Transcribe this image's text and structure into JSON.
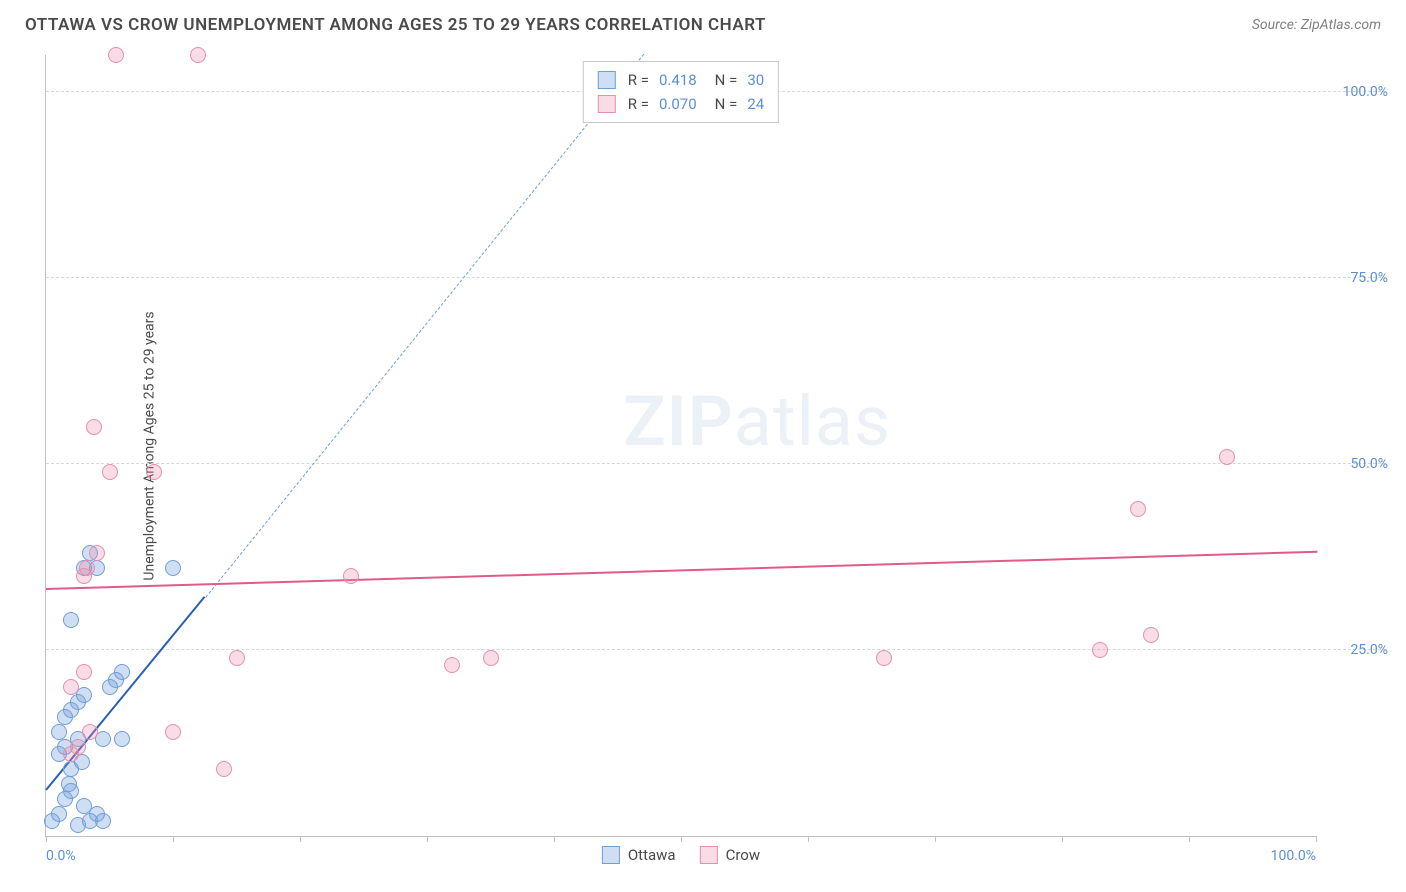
{
  "header": {
    "title": "OTTAWA VS CROW UNEMPLOYMENT AMONG AGES 25 TO 29 YEARS CORRELATION CHART",
    "source": "Source: ZipAtlas.com"
  },
  "y_axis": {
    "label": "Unemployment Among Ages 25 to 29 years"
  },
  "watermark": {
    "part1": "ZIP",
    "part2": "atlas"
  },
  "chart": {
    "type": "scatter",
    "xlim": [
      0,
      100
    ],
    "ylim": [
      0,
      105
    ],
    "x_ticks": [
      0,
      10,
      20,
      30,
      40,
      50,
      60,
      70,
      80,
      90,
      100
    ],
    "x_tick_labels": {
      "0": "0.0%",
      "100": "100.0%"
    },
    "y_gridlines": [
      25,
      50,
      75,
      100
    ],
    "y_tick_labels": {
      "25": "25.0%",
      "50": "50.0%",
      "75": "75.0%",
      "100": "100.0%"
    },
    "grid_color": "#d8d8d8",
    "axis_color": "#c0c0c0",
    "tick_label_color": "#5b8fd6",
    "background_color": "#ffffff",
    "point_radius": 8,
    "point_stroke_width": 1.5,
    "series": [
      {
        "name": "Ottawa",
        "fill": "rgba(120,160,220,0.35)",
        "stroke": "#6f9fd8",
        "R": "0.418",
        "N": "30",
        "trend": {
          "x1": 0,
          "y1": 6,
          "x2": 12.5,
          "y2": 32,
          "color": "#2b5fb0",
          "width": 2,
          "dash": false
        },
        "trend_ext": {
          "x1": 12.5,
          "y1": 32,
          "x2": 47,
          "y2": 105,
          "color": "#6f9fd8",
          "dash": true
        },
        "points": [
          [
            0.5,
            2
          ],
          [
            1,
            3
          ],
          [
            1.5,
            5
          ],
          [
            2,
            6
          ],
          [
            2,
            9
          ],
          [
            2.5,
            1.5
          ],
          [
            3,
            4
          ],
          [
            1,
            11
          ],
          [
            1.5,
            12
          ],
          [
            2.5,
            13
          ],
          [
            3.5,
            2
          ],
          [
            4,
            3
          ],
          [
            4.5,
            2
          ],
          [
            1,
            14
          ],
          [
            1.5,
            16
          ],
          [
            2,
            17
          ],
          [
            2.5,
            18
          ],
          [
            3,
            19
          ],
          [
            4.5,
            13
          ],
          [
            5,
            20
          ],
          [
            6,
            13
          ],
          [
            5.5,
            21
          ],
          [
            2,
            29
          ],
          [
            3,
            36
          ],
          [
            3.5,
            38
          ],
          [
            4,
            36
          ],
          [
            6,
            22
          ],
          [
            10,
            36
          ],
          [
            1.8,
            7
          ],
          [
            2.8,
            10
          ]
        ]
      },
      {
        "name": "Crow",
        "fill": "rgba(235,140,170,0.30)",
        "stroke": "#e58fb0",
        "R": "0.070",
        "N": "24",
        "trend": {
          "x1": 0,
          "y1": 33,
          "x2": 100,
          "y2": 38,
          "color": "#e05a8a",
          "width": 2,
          "dash": false
        },
        "points": [
          [
            2,
            11
          ],
          [
            2.5,
            12
          ],
          [
            2,
            20
          ],
          [
            3,
            22
          ],
          [
            3.5,
            14
          ],
          [
            3,
            35
          ],
          [
            3.2,
            36
          ],
          [
            4,
            38
          ],
          [
            5,
            49
          ],
          [
            8.5,
            49
          ],
          [
            5.5,
            105
          ],
          [
            12,
            105
          ],
          [
            3.8,
            55
          ],
          [
            10,
            14
          ],
          [
            14,
            9
          ],
          [
            15,
            24
          ],
          [
            24,
            35
          ],
          [
            32,
            23
          ],
          [
            35,
            24
          ],
          [
            66,
            24
          ],
          [
            83,
            25
          ],
          [
            87,
            27
          ],
          [
            86,
            44
          ],
          [
            93,
            51
          ]
        ]
      }
    ]
  },
  "legend": {
    "r_label": "R =",
    "n_label": "N ="
  },
  "bottom_legend": {
    "items": [
      "Ottawa",
      "Crow"
    ]
  }
}
